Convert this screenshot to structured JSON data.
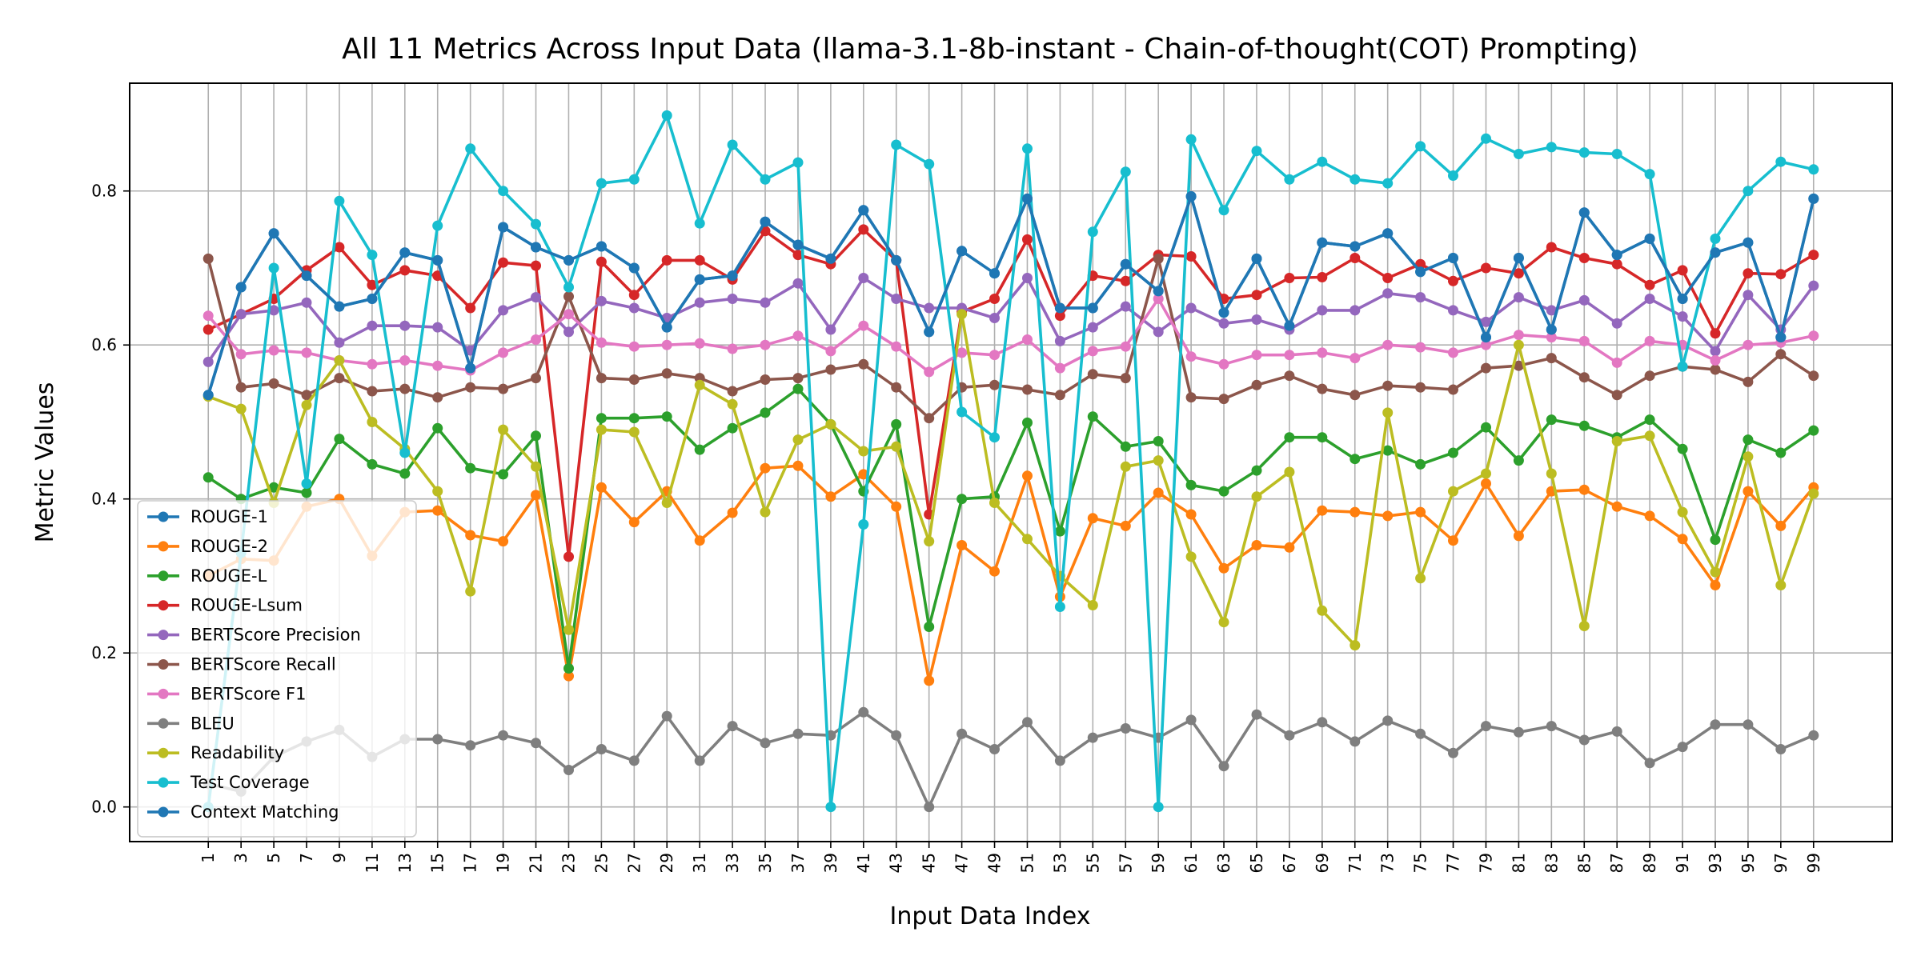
{
  "chart_data": {
    "type": "line",
    "title": "All 11 Metrics Across Input Data (llama-3.1-8b-instant - Chain-of-thought(COT) Prompting)",
    "xlabel": "Input Data Index",
    "ylabel": "Metric Values",
    "x": [
      1,
      3,
      5,
      7,
      9,
      11,
      13,
      15,
      17,
      19,
      21,
      23,
      25,
      27,
      29,
      31,
      33,
      35,
      37,
      39,
      41,
      43,
      45,
      47,
      49,
      51,
      53,
      55,
      57,
      59,
      61,
      63,
      65,
      67,
      69,
      71,
      73,
      75,
      77,
      79,
      81,
      83,
      85,
      87,
      89,
      91,
      93,
      95,
      97,
      99
    ],
    "xticks": [
      "1",
      "3",
      "5",
      "7",
      "9",
      "11",
      "13",
      "15",
      "17",
      "19",
      "21",
      "23",
      "25",
      "27",
      "29",
      "31",
      "33",
      "35",
      "37",
      "39",
      "41",
      "43",
      "45",
      "47",
      "49",
      "51",
      "53",
      "55",
      "57",
      "59",
      "61",
      "63",
      "65",
      "67",
      "69",
      "71",
      "73",
      "75",
      "77",
      "79",
      "81",
      "83",
      "85",
      "87",
      "89",
      "91",
      "93",
      "95",
      "97",
      "99"
    ],
    "yticks": [
      "0.0",
      "0.2",
      "0.4",
      "0.6",
      "0.8"
    ],
    "ylim": [
      -0.045,
      0.94
    ],
    "xlim": [
      -3.8,
      103.8
    ],
    "grid": true,
    "legend_position": "lower-left",
    "series": [
      {
        "name": "ROUGE-1",
        "color": "#1f77b4",
        "values": [
          0.535,
          0.675,
          0.745,
          0.69,
          0.65,
          0.66,
          0.72,
          0.71,
          0.57,
          0.753,
          0.727,
          0.71,
          0.728,
          0.7,
          0.623,
          0.685,
          0.69,
          0.76,
          0.73,
          0.712,
          0.775,
          0.71,
          0.617,
          0.722,
          0.693,
          0.79,
          0.648,
          0.648,
          0.705,
          0.67,
          0.793,
          0.642,
          0.712,
          0.625,
          0.733,
          0.728,
          0.745,
          0.695,
          0.713,
          0.61,
          0.713,
          0.62,
          0.772,
          0.717,
          0.738,
          0.66,
          0.72,
          0.733,
          0.61,
          0.79
        ]
      },
      {
        "name": "ROUGE-2",
        "color": "#ff7f0e",
        "values": [
          0.3,
          0.322,
          0.32,
          0.39,
          0.4,
          0.326,
          0.383,
          0.385,
          0.353,
          0.345,
          0.405,
          0.17,
          0.415,
          0.37,
          0.41,
          0.346,
          0.382,
          0.44,
          0.443,
          0.403,
          0.432,
          0.39,
          0.164,
          0.34,
          0.306,
          0.43,
          0.273,
          0.375,
          0.365,
          0.408,
          0.38,
          0.31,
          0.34,
          0.337,
          0.385,
          0.383,
          0.378,
          0.383,
          0.346,
          0.42,
          0.352,
          0.41,
          0.412,
          0.39,
          0.378,
          0.348,
          0.288,
          0.41,
          0.365,
          0.415
        ]
      },
      {
        "name": "ROUGE-L",
        "color": "#2ca02c",
        "values": [
          0.428,
          0.4,
          0.415,
          0.408,
          0.478,
          0.445,
          0.433,
          0.492,
          0.44,
          0.432,
          0.482,
          0.18,
          0.505,
          0.505,
          0.507,
          0.464,
          0.492,
          0.512,
          0.543,
          0.497,
          0.41,
          0.497,
          0.234,
          0.4,
          0.403,
          0.499,
          0.358,
          0.507,
          0.468,
          0.475,
          0.418,
          0.41,
          0.437,
          0.48,
          0.48,
          0.452,
          0.463,
          0.445,
          0.46,
          0.493,
          0.45,
          0.503,
          0.495,
          0.48,
          0.503,
          0.465,
          0.347,
          0.477,
          0.46,
          0.489
        ]
      },
      {
        "name": "ROUGE-Lsum",
        "color": "#d62728",
        "values": [
          0.62,
          0.64,
          0.66,
          0.697,
          0.727,
          0.678,
          0.697,
          0.69,
          0.648,
          0.707,
          0.703,
          0.325,
          0.708,
          0.665,
          0.71,
          0.71,
          0.685,
          0.748,
          0.717,
          0.705,
          0.75,
          0.71,
          0.38,
          0.643,
          0.66,
          0.737,
          0.638,
          0.69,
          0.683,
          0.717,
          0.715,
          0.66,
          0.665,
          0.687,
          0.688,
          0.713,
          0.687,
          0.705,
          0.683,
          0.7,
          0.693,
          0.727,
          0.713,
          0.705,
          0.678,
          0.697,
          0.615,
          0.693,
          0.692,
          0.717
        ]
      },
      {
        "name": "BERTScore Precision",
        "color": "#9467bd",
        "values": [
          0.578,
          0.64,
          0.645,
          0.655,
          0.603,
          0.625,
          0.625,
          0.623,
          0.593,
          0.645,
          0.662,
          0.617,
          0.657,
          0.648,
          0.635,
          0.655,
          0.66,
          0.655,
          0.68,
          0.62,
          0.687,
          0.66,
          0.648,
          0.648,
          0.635,
          0.687,
          0.605,
          0.623,
          0.65,
          0.617,
          0.648,
          0.628,
          0.633,
          0.62,
          0.645,
          0.645,
          0.667,
          0.662,
          0.645,
          0.63,
          0.662,
          0.645,
          0.658,
          0.628,
          0.66,
          0.637,
          0.592,
          0.665,
          0.62,
          0.677
        ]
      },
      {
        "name": "BERTScore Recall",
        "color": "#8c564b",
        "values": [
          0.712,
          0.545,
          0.55,
          0.535,
          0.557,
          0.54,
          0.543,
          0.532,
          0.545,
          0.543,
          0.557,
          0.663,
          0.557,
          0.555,
          0.563,
          0.557,
          0.54,
          0.555,
          0.557,
          0.568,
          0.575,
          0.545,
          0.505,
          0.545,
          0.548,
          0.542,
          0.535,
          0.562,
          0.557,
          0.712,
          0.532,
          0.53,
          0.548,
          0.56,
          0.543,
          0.535,
          0.547,
          0.545,
          0.542,
          0.57,
          0.573,
          0.583,
          0.558,
          0.535,
          0.56,
          0.572,
          0.568,
          0.552,
          0.588,
          0.56
        ]
      },
      {
        "name": "BERTScore F1",
        "color": "#e377c2",
        "values": [
          0.638,
          0.588,
          0.593,
          0.59,
          0.58,
          0.575,
          0.58,
          0.573,
          0.567,
          0.59,
          0.607,
          0.64,
          0.603,
          0.598,
          0.6,
          0.602,
          0.595,
          0.6,
          0.612,
          0.592,
          0.625,
          0.598,
          0.565,
          0.59,
          0.587,
          0.607,
          0.57,
          0.592,
          0.598,
          0.66,
          0.585,
          0.575,
          0.587,
          0.587,
          0.59,
          0.583,
          0.6,
          0.597,
          0.59,
          0.6,
          0.613,
          0.61,
          0.605,
          0.577,
          0.605,
          0.6,
          0.58,
          0.6,
          0.603,
          0.612
        ]
      },
      {
        "name": "BLEU",
        "color": "#7f7f7f",
        "values": [
          0.03,
          0.02,
          0.065,
          0.085,
          0.1,
          0.065,
          0.088,
          0.088,
          0.08,
          0.093,
          0.083,
          0.048,
          0.075,
          0.06,
          0.118,
          0.06,
          0.105,
          0.083,
          0.095,
          0.093,
          0.123,
          0.093,
          0.0,
          0.095,
          0.075,
          0.11,
          0.06,
          0.09,
          0.102,
          0.09,
          0.113,
          0.053,
          0.12,
          0.093,
          0.11,
          0.085,
          0.112,
          0.095,
          0.07,
          0.105,
          0.097,
          0.105,
          0.087,
          0.098,
          0.057,
          0.078,
          0.107,
          0.107,
          0.075,
          0.093
        ]
      },
      {
        "name": "Readability",
        "color": "#bcbd22",
        "values": [
          0.533,
          0.517,
          0.395,
          0.522,
          0.58,
          0.5,
          0.465,
          0.41,
          0.28,
          0.49,
          0.442,
          0.23,
          0.49,
          0.487,
          0.395,
          0.548,
          0.523,
          0.383,
          0.477,
          0.497,
          0.462,
          0.468,
          0.345,
          0.64,
          0.395,
          0.348,
          0.3,
          0.262,
          0.442,
          0.45,
          0.325,
          0.24,
          0.403,
          0.435,
          0.255,
          0.21,
          0.512,
          0.297,
          0.41,
          0.433,
          0.6,
          0.433,
          0.235,
          0.475,
          0.482,
          0.383,
          0.305,
          0.455,
          0.288,
          0.407
        ]
      },
      {
        "name": "Test Coverage",
        "color": "#17becf",
        "values": [
          0.0,
          0.33,
          0.7,
          0.42,
          0.787,
          0.717,
          0.46,
          0.755,
          0.855,
          0.8,
          0.757,
          0.675,
          0.81,
          0.815,
          0.898,
          0.758,
          0.86,
          0.815,
          0.837,
          0.0,
          0.367,
          0.86,
          0.835,
          0.513,
          0.48,
          0.855,
          0.26,
          0.747,
          0.825,
          0.0,
          0.867,
          0.775,
          0.852,
          0.815,
          0.838,
          0.815,
          0.81,
          0.858,
          0.82,
          0.868,
          0.848,
          0.857,
          0.85,
          0.848,
          0.822,
          0.572,
          0.738,
          0.8,
          0.838,
          0.828
        ]
      },
      {
        "name": "Context Matching",
        "color": "#1f77b4",
        "values": [
          0.535,
          0.675,
          0.745,
          0.69,
          0.65,
          0.66,
          0.72,
          0.71,
          0.57,
          0.753,
          0.727,
          0.71,
          0.728,
          0.7,
          0.623,
          0.685,
          0.69,
          0.76,
          0.73,
          0.712,
          0.775,
          0.71,
          0.617,
          0.722,
          0.693,
          0.79,
          0.648,
          0.648,
          0.705,
          0.67,
          0.793,
          0.642,
          0.712,
          0.625,
          0.733,
          0.728,
          0.745,
          0.695,
          0.713,
          0.61,
          0.713,
          0.62,
          0.772,
          0.717,
          0.738,
          0.66,
          0.72,
          0.733,
          0.61,
          0.79
        ]
      }
    ]
  }
}
